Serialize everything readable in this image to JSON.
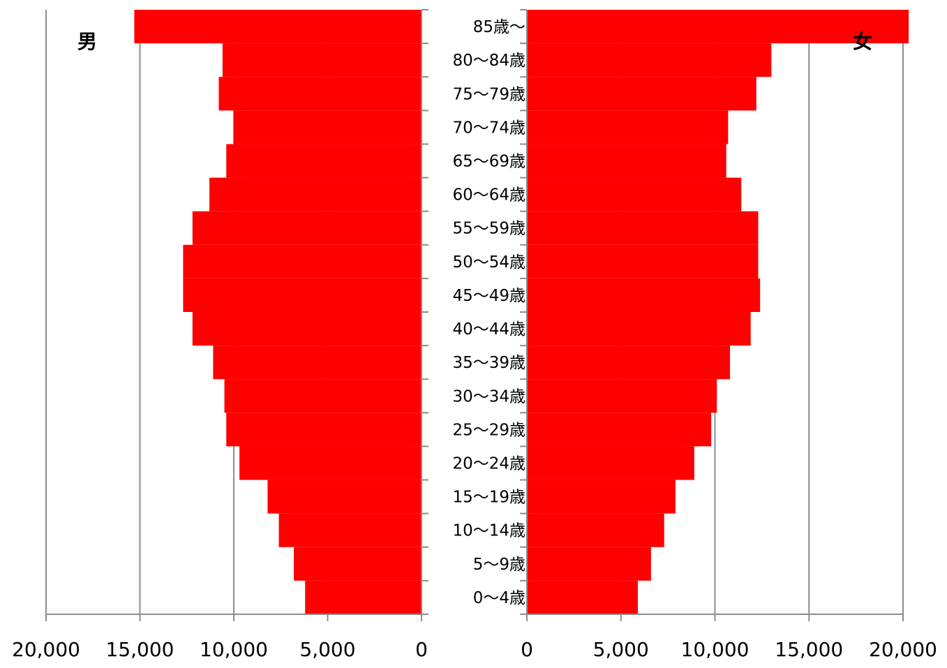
{
  "chart_data": {
    "type": "bar",
    "orientation": "horizontal",
    "categories": [
      "0〜4歳",
      "5〜9歳",
      "10〜14歳",
      "15〜19歳",
      "20〜24歳",
      "25〜29歳",
      "30〜34歳",
      "35〜39歳",
      "40〜44歳",
      "45〜49歳",
      "50〜54歳",
      "55〜59歳",
      "60〜64歳",
      "65〜69歳",
      "70〜74歳",
      "75〜79歳",
      "80〜84歳",
      "85歳〜"
    ],
    "series": [
      {
        "name": "男",
        "values": [
          6200,
          6800,
          7600,
          8200,
          9700,
          10400,
          10500,
          11100,
          12200,
          12700,
          12700,
          12200,
          11300,
          10400,
          10000,
          10800,
          10600,
          15300
        ]
      },
      {
        "name": "女",
        "values": [
          5900,
          6600,
          7300,
          7900,
          8900,
          9800,
          10100,
          10800,
          11900,
          12400,
          12300,
          12300,
          11400,
          10600,
          10700,
          12200,
          13000,
          20300
        ]
      }
    ],
    "xlim": [
      0,
      20000
    ],
    "xticks": [
      "0",
      "5,000",
      "10,000",
      "15,000",
      "20,000"
    ],
    "grid": true,
    "colors": {
      "bar": "#ff0000",
      "grid": "#8c8c8c"
    }
  }
}
